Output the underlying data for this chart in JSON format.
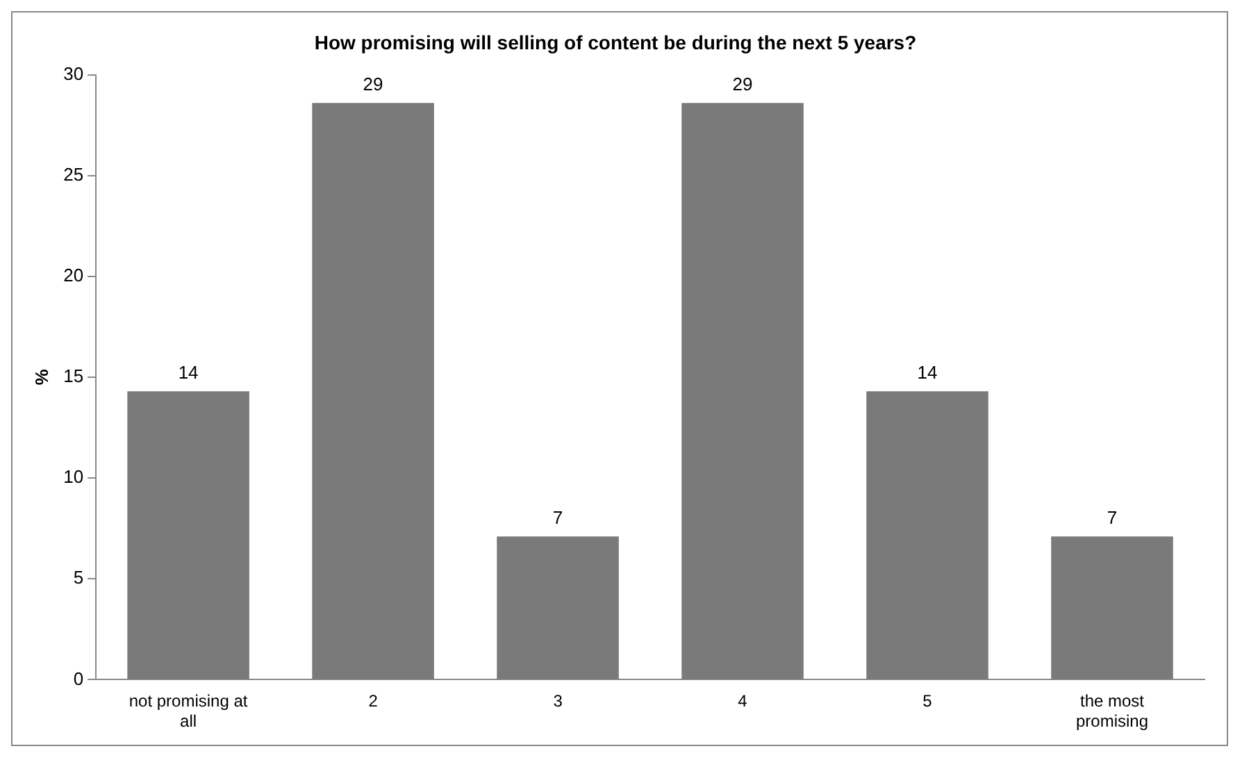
{
  "chart_data": {
    "type": "bar",
    "title": "How promising will selling of content be during the next 5 years?",
    "ylabel": "%",
    "categories": [
      "not promising at all",
      "2",
      "3",
      "4",
      "5",
      "the most promising"
    ],
    "values": [
      14.3,
      28.6,
      7.1,
      28.6,
      14.3,
      7.1
    ],
    "value_labels": [
      "14",
      "29",
      "7",
      "29",
      "14",
      "7"
    ],
    "color": "#7a7a7a",
    "ylim": [
      0,
      30
    ],
    "yticks": [
      0,
      5,
      10,
      15,
      20,
      25,
      30
    ],
    "grid": false,
    "legend": false
  }
}
